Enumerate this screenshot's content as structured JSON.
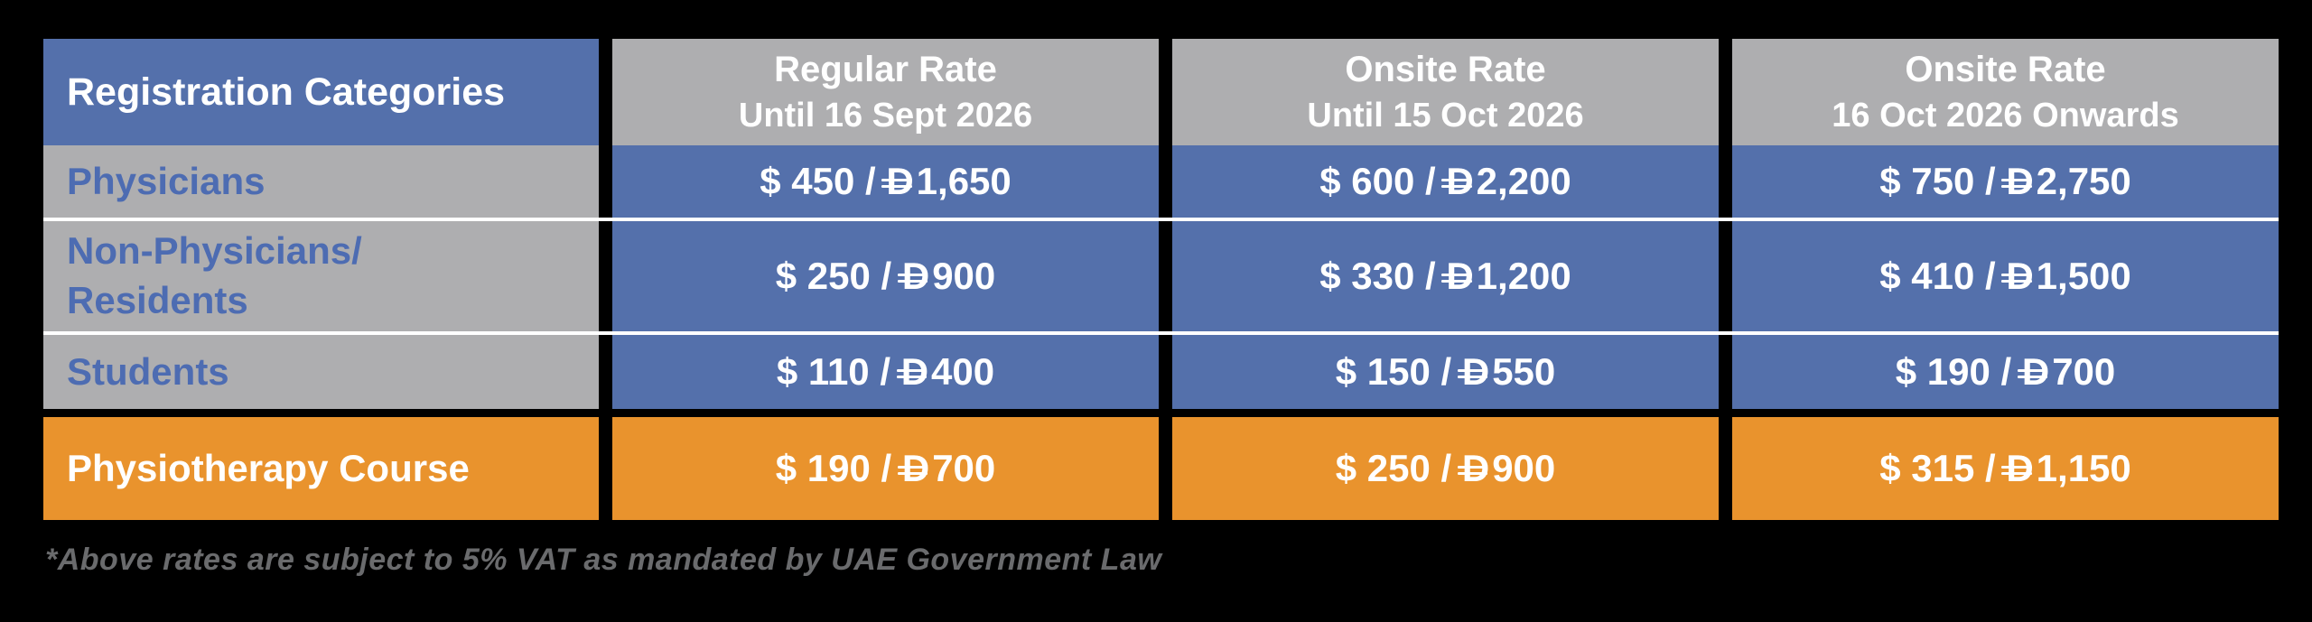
{
  "page": {
    "background_color": "#000000"
  },
  "colors": {
    "header_category_blue": "#5470AB",
    "value_cell_blue": "#5470AB",
    "gray": "#AEAEB0",
    "highlight_orange": "#E9932D",
    "category_text_blue": "#4D6CB2",
    "white": "#FFFFFF",
    "footnote_gray": "#6A6B6D"
  },
  "currency": {
    "dirham_letter": "D",
    "separator": " / "
  },
  "table": {
    "header": {
      "categories_label": "Registration Categories",
      "columns": [
        {
          "title": "Regular Rate",
          "subtitle": "Until 16 Sept 2026"
        },
        {
          "title": "Onsite Rate",
          "subtitle": "Until 15 Oct 2026"
        },
        {
          "title": "Onsite Rate",
          "subtitle": "16 Oct 2026 Onwards"
        }
      ]
    },
    "rows": [
      {
        "category": "Physicians",
        "rates": [
          {
            "usd": "$ 450",
            "aed": "1,650"
          },
          {
            "usd": "$ 600",
            "aed": "2,200"
          },
          {
            "usd": "$ 750",
            "aed": "2,750"
          }
        ]
      },
      {
        "category": "Non-Physicians/\nResidents",
        "rates": [
          {
            "usd": "$ 250",
            "aed": "900"
          },
          {
            "usd": "$ 330",
            "aed": "1,200"
          },
          {
            "usd": "$ 410",
            "aed": "1,500"
          }
        ]
      },
      {
        "category": "Students",
        "rates": [
          {
            "usd": "$ 110",
            "aed": "400"
          },
          {
            "usd": "$ 150",
            "aed": "550"
          },
          {
            "usd": "$ 190",
            "aed": "700"
          }
        ]
      }
    ],
    "highlight_row": {
      "category": "Physiotherapy Course",
      "rates": [
        {
          "usd": "$ 190",
          "aed": "700"
        },
        {
          "usd": "$ 250",
          "aed": "900"
        },
        {
          "usd": "$ 315",
          "aed": "1,150"
        }
      ]
    }
  },
  "footnote": "*Above rates are subject to 5% VAT as mandated by UAE Government Law",
  "chart_data": {
    "type": "table",
    "title": "Registration Categories",
    "columns": [
      "Registration Categories",
      "Regular Rate Until 16 Sept 2026",
      "Onsite Rate Until 15 Oct 2026",
      "Onsite Rate 16 Oct 2026 Onwards"
    ],
    "rows": [
      [
        "Physicians",
        "$ 450 / AED 1,650",
        "$ 600 / AED 2,200",
        "$ 750 / AED 2,750"
      ],
      [
        "Non-Physicians/Residents",
        "$ 250 / AED 900",
        "$ 330 / AED 1,200",
        "$ 410 / AED 1,500"
      ],
      [
        "Students",
        "$ 110 / AED 400",
        "$ 150 / AED 550",
        "$ 190 / AED 700"
      ],
      [
        "Physiotherapy Course",
        "$ 190 / AED 700",
        "$ 250 / AED 900",
        "$ 315 / AED 1,150"
      ]
    ],
    "footnote": "*Above rates are subject to 5% VAT as mandated by UAE Government Law",
    "notes": "Currency pairs shown as USD / UAE dirham (new dirham symbol: D with two horizontal bars). Highlighted last row (Physiotherapy Course) is orange; other body rows blue/gray."
  }
}
